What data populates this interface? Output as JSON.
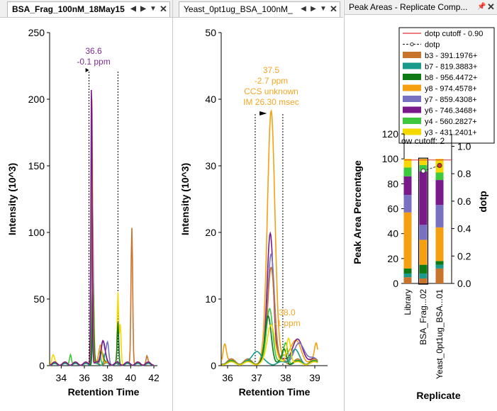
{
  "panes": [
    {
      "tab_label": "BSA_Frag_100nM_18May15",
      "active": true,
      "chart": {
        "ylabel": "Intensity (10^3)",
        "xlabel": "Retention Time",
        "yticks": [
          "0",
          "50",
          "100",
          "150",
          "200",
          "250"
        ],
        "xticks": [
          "34",
          "36",
          "38",
          "40",
          "42"
        ],
        "annotation": [
          "36.6",
          "-0.1 ppm"
        ],
        "annotation_color": "#7b2d8e"
      }
    },
    {
      "tab_label": "Yeast_0pt1ug_BSA_100nM_",
      "active": false,
      "chart": {
        "ylabel": "Intensity (10^3)",
        "xlabel": "Retention Time",
        "yticks": [
          "0",
          "10",
          "20",
          "30",
          "40",
          "50"
        ],
        "xticks": [
          "36",
          "37",
          "38",
          "39"
        ],
        "annotation": [
          "37.5",
          "-2.7 ppm",
          "CCS unknown",
          "IM 26.30 msec"
        ],
        "annotation_color": "#f5a623",
        "annotation2": [
          "38.0",
          "-1 ppm"
        ]
      }
    }
  ],
  "peak_panel": {
    "title": "Peak Areas - Replicate Comp...",
    "legend": [
      {
        "label": "dotp cutoff - 0.90",
        "color": "#e03030",
        "kind": "line"
      },
      {
        "label": "dotp",
        "color": "#333333",
        "kind": "dash"
      },
      {
        "label": "b3 - 391.1976+",
        "color": "#c8742c",
        "kind": "swatch"
      },
      {
        "label": "b7 - 819.3883+",
        "color": "#1a9a8a",
        "kind": "swatch"
      },
      {
        "label": "b8 - 956.4472+",
        "color": "#0d7a14",
        "kind": "swatch"
      },
      {
        "label": "y8 - 974.4578+",
        "color": "#f5a010",
        "kind": "swatch"
      },
      {
        "label": "y7 - 859.4308+",
        "color": "#7870c0",
        "kind": "swatch"
      },
      {
        "label": "y6 - 746.3468+",
        "color": "#7a1a8a",
        "kind": "swatch"
      },
      {
        "label": "y4 - 560.2827+",
        "color": "#3ec83e",
        "kind": "swatch"
      },
      {
        "label": "y3 - 431.2401+",
        "color": "#f5d800",
        "kind": "swatch"
      }
    ],
    "low_cutoff_label": "ow cutoff: 2",
    "ylabel": "Peak Area Percentage",
    "y2label": "dotp",
    "xlabel": "Replicate",
    "yticks": [
      "0",
      "20",
      "40",
      "60",
      "80",
      "100",
      "120"
    ],
    "y2ticks": [
      "0.0",
      "0.2",
      "0.4",
      "0.6",
      "0.8",
      "1.0"
    ],
    "replicates": [
      "Library",
      "BSA_Frag...02",
      "Yeast_0pt1ug_BSA...01"
    ]
  },
  "chart_data": {
    "type": "bar",
    "categories": [
      "Library",
      "BSA_Frag...02",
      "Yeast_0pt1ug_BSA...01"
    ],
    "series": [
      {
        "name": "b3 - 391.1976+",
        "values": [
          5,
          4,
          12
        ]
      },
      {
        "name": "b7 - 819.3883+",
        "values": [
          3,
          4,
          3
        ]
      },
      {
        "name": "b8 - 956.4472+",
        "values": [
          4,
          7,
          3
        ]
      },
      {
        "name": "y8 - 974.4578+",
        "values": [
          45,
          20,
          27
        ]
      },
      {
        "name": "y7 - 859.4308+",
        "values": [
          14,
          12,
          18
        ]
      },
      {
        "name": "y6 - 746.3468+",
        "values": [
          15,
          43,
          20
        ]
      },
      {
        "name": "y4 - 560.2827+",
        "values": [
          7,
          5,
          6
        ]
      },
      {
        "name": "y3 - 431.2401+",
        "values": [
          7,
          5,
          11
        ]
      }
    ],
    "dotp": [
      null,
      0.82,
      0.86
    ],
    "dotp_cutoff": 0.9,
    "ylim": [
      0,
      120
    ],
    "y2lim": [
      0,
      1.0
    ],
    "ylabel": "Peak Area Percentage",
    "y2label": "dotp",
    "xlabel": "Replicate",
    "legend_position": "top"
  }
}
